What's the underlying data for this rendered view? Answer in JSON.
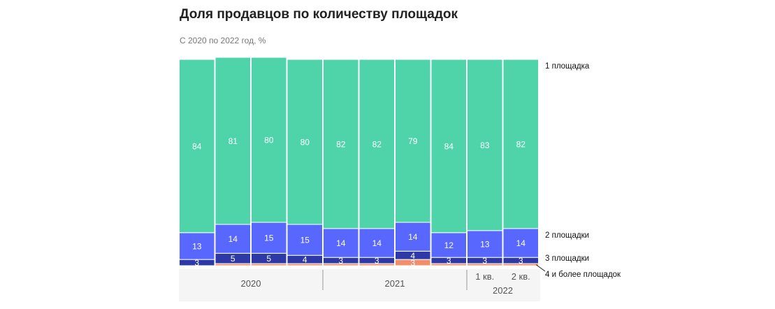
{
  "header": {
    "title": "Доля продавцов по количеству площадок",
    "subtitle": "С 2020 по 2022 год, %"
  },
  "chart_data": {
    "type": "bar",
    "stacked": true,
    "title": "Доля продавцов по количеству площадок",
    "subtitle": "С 2020 по 2022 год, %",
    "ylim": [
      0,
      100
    ],
    "categories": [
      "2020 Q1",
      "2020 Q2",
      "2020 Q3",
      "2020 Q4",
      "2021 Q1",
      "2021 Q2",
      "2021 Q3",
      "2021 Q4",
      "2022 Q1",
      "2022 Q2"
    ],
    "series": [
      {
        "name": "4 и более площадок",
        "color": "#f28f6b",
        "values": [
          0,
          1,
          1,
          1,
          1,
          1,
          3,
          1,
          1,
          1
        ],
        "labels": [
          "",
          "",
          "",
          "",
          "",
          "",
          "3",
          "",
          "",
          ""
        ]
      },
      {
        "name": "3 площадки",
        "color": "#2d39a6",
        "values": [
          3,
          5,
          5,
          4,
          3,
          3,
          4,
          3,
          3,
          3
        ],
        "labels": [
          "3",
          "5",
          "5",
          "4",
          "3",
          "3",
          "4",
          "3",
          "3",
          "3"
        ]
      },
      {
        "name": "2 площадки",
        "color": "#5868ff",
        "values": [
          13,
          14,
          15,
          15,
          14,
          14,
          14,
          12,
          13,
          14
        ],
        "labels": [
          "13",
          "14",
          "15",
          "15",
          "14",
          "14",
          "14",
          "12",
          "13",
          "14"
        ]
      },
      {
        "name": "1 площадка",
        "color": "#4fd4aa",
        "values": [
          84,
          81,
          80,
          80,
          82,
          82,
          79,
          84,
          83,
          82
        ],
        "labels": [
          "84",
          "81",
          "80",
          "80",
          "82",
          "82",
          "79",
          "84",
          "83",
          "82"
        ]
      }
    ],
    "legend": [
      "1 площадка",
      "2 площадки",
      "3 площадки",
      "4 и более площадок"
    ],
    "x_groups": [
      {
        "label": "2020",
        "sublabels": []
      },
      {
        "label": "2021",
        "sublabels": []
      },
      {
        "label": "2022",
        "sublabels": [
          "1 кв.",
          "2 кв."
        ]
      }
    ]
  }
}
